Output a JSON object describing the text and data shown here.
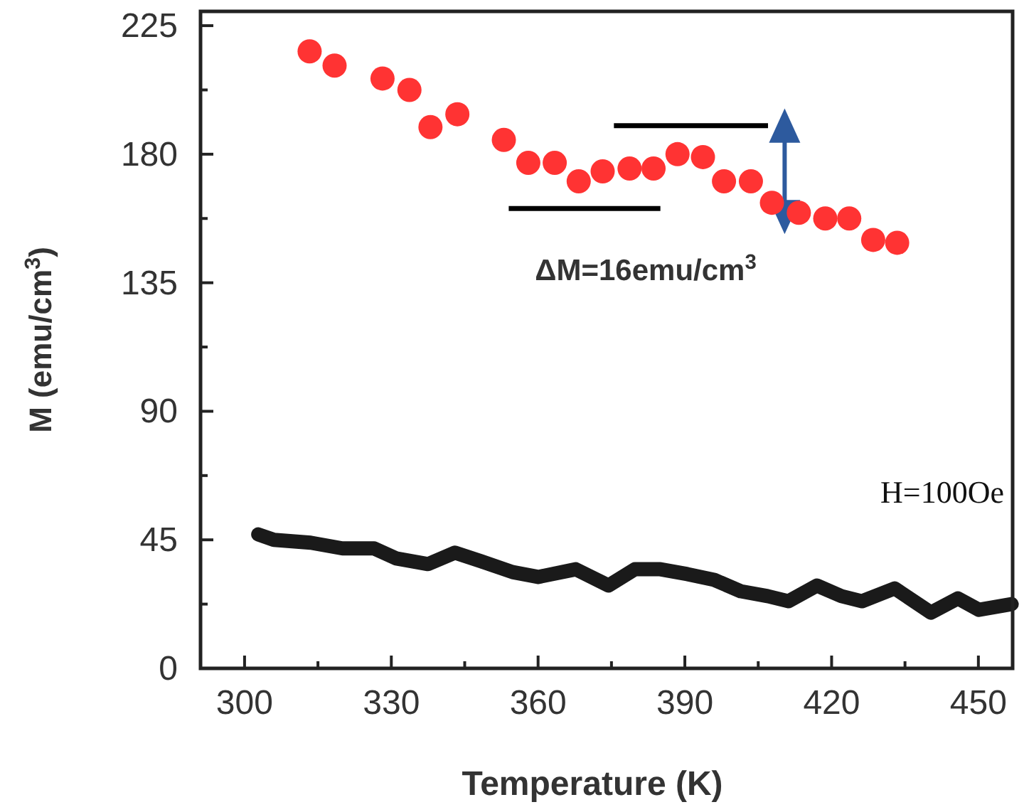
{
  "chart_data": {
    "type": "scatter",
    "xlabel": "Temperature (K)",
    "ylabel": "M (emu/cm$^{3}$)",
    "xlim": [
      291,
      457
    ],
    "xticks": [
      300,
      {
        "value": 315,
        "label": null
      },
      330,
      {
        "value": 345,
        "label": null
      },
      360,
      {
        "value": 375,
        "label": null
      },
      390,
      {
        "value": 405,
        "label": null
      },
      420,
      {
        "value": 435,
        "label": null
      },
      450
    ],
    "ylim": [
      0,
      230
    ],
    "yticks": [
      0,
      {
        "value": 22.5,
        "label": null
      },
      45,
      {
        "value": 67.5,
        "label": null
      },
      90,
      {
        "value": 112.5,
        "label": null
      },
      135,
      {
        "value": 157.5,
        "label": null
      },
      180,
      {
        "value": 202.5,
        "label": null
      },
      225
    ],
    "grid": false,
    "series": [
      {
        "color": "#ff3333",
        "marker": "circle",
        "x": [
          313.3,
          318.4,
          328.2,
          333.7,
          338,
          343.5,
          353,
          358,
          363.4,
          368.3,
          373.2,
          378.7,
          383.6,
          388.5,
          393.7,
          398,
          403.5,
          407.8,
          413.3,
          418.7,
          423.6,
          428.5,
          433.4
        ],
        "values": [
          216,
          211,
          206.5,
          202.5,
          189.5,
          194,
          185,
          177,
          177,
          170.5,
          174,
          175,
          175,
          180,
          179,
          170.5,
          170.5,
          163,
          159.5,
          157.5,
          157.5,
          150,
          149
        ]
      },
      {
        "type": "line",
        "color": "#1a1a1a",
        "line_style": "solid",
        "x": [
          302.8,
          306,
          313.5,
          320,
          326.5,
          331,
          337.5,
          343,
          348.3,
          354.8,
          360,
          367.7,
          374.4,
          379.8,
          385,
          390.5,
          396,
          401.4,
          406.9,
          411.2,
          417,
          422,
          426.2,
          432.9,
          440.3,
          445.8,
          450.1,
          456.8
        ],
        "values": [
          46.9,
          45,
          44,
          42,
          42,
          38.5,
          36.5,
          40.5,
          37.5,
          33.7,
          32,
          34.7,
          29,
          34.7,
          34.7,
          33,
          31,
          27,
          25.3,
          23.5,
          29,
          25.3,
          23.5,
          28,
          19.5,
          24.5,
          20.5,
          22.5
        ]
      },
      {
        "type": "line",
        "color": "#000000",
        "line_style": "solid",
        "x": [
          354,
          385
        ],
        "values": [
          161,
          161
        ]
      },
      {
        "type": "line",
        "color": "#000000",
        "line_style": "solid",
        "x": [
          375.5,
          407
        ],
        "values": [
          190,
          190
        ]
      }
    ],
    "annotations": [
      "ΔM=16emu/cm$^{3}$",
      "H=100Oe"
    ]
  }
}
